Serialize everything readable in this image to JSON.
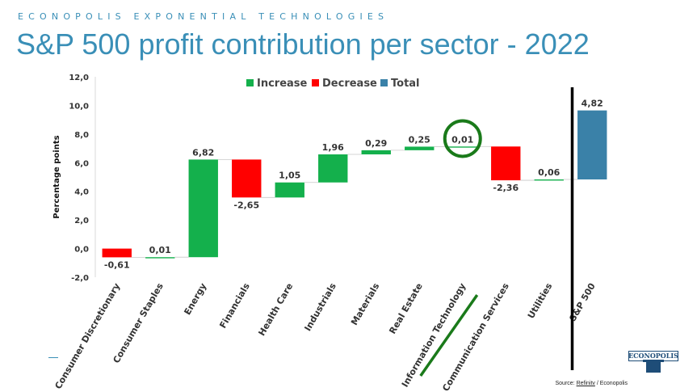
{
  "header": {
    "kicker": "ECONOPOLIS EXPONENTIAL TECHNOLOGIES",
    "title": "S&P 500 profit contribution per sector - 2022"
  },
  "source": {
    "prefix": "Source: ",
    "provider": "Refinitv",
    "suffix": " / Econopolis"
  },
  "logo": {
    "text": "ECONOPOLIS"
  },
  "colors": {
    "increase": "#14b04c",
    "decrease": "#ff0000",
    "total": "#3a81a8",
    "highlight": "#1a7a1a",
    "title": "#3a8fb7"
  },
  "chart_data": {
    "type": "bar",
    "subtype": "waterfall",
    "ylabel": "Percentage points",
    "ylim": [
      -2,
      12
    ],
    "yticks": [
      "-2,0",
      "0,0",
      "2,0",
      "4,0",
      "6,0",
      "8,0",
      "10,0",
      "12,0"
    ],
    "grid": false,
    "legend": {
      "position": "top",
      "entries": [
        "Increase",
        "Decrease",
        "Total"
      ]
    },
    "categories": [
      "Consumer Discretionary",
      "Consumer Staples",
      "Energy",
      "Financials",
      "Health Care",
      "Industrials",
      "Materials",
      "Real Estate",
      "Information Technology",
      "Communication Services",
      "Utilities",
      "S&P 500"
    ],
    "values": [
      -0.61,
      0.01,
      6.82,
      -2.65,
      1.05,
      1.96,
      0.29,
      0.25,
      0.01,
      -2.36,
      0.06,
      4.82
    ],
    "value_labels": [
      "-0,61",
      "0,01",
      "6,82",
      "-2,65",
      "1,05",
      "1,96",
      "0,29",
      "0,25",
      "0,01",
      "-2,36",
      "0,06",
      "4,82"
    ],
    "kinds": [
      "decrease",
      "increase",
      "increase",
      "decrease",
      "increase",
      "increase",
      "increase",
      "increase",
      "increase",
      "decrease",
      "increase",
      "total"
    ],
    "highlighted_category": "Information Technology"
  }
}
